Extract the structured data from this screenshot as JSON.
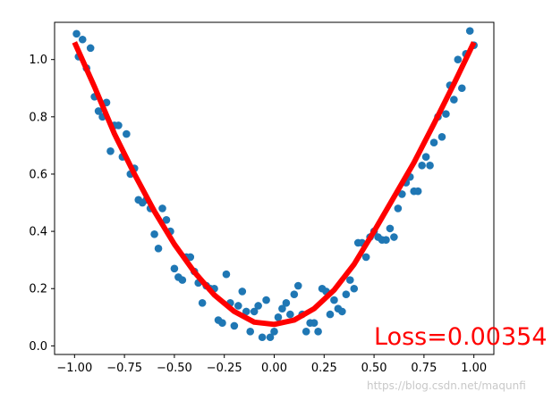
{
  "chart_data": {
    "type": "scatter",
    "xlim": [
      -1.1,
      1.1
    ],
    "ylim": [
      -0.03,
      1.13
    ],
    "grid": false,
    "x_ticks": [
      -1.0,
      -0.75,
      -0.5,
      -0.25,
      0.0,
      0.25,
      0.5,
      0.75,
      1.0
    ],
    "x_tick_labels": [
      "−1.00",
      "−0.75",
      "−0.50",
      "−0.25",
      "0.00",
      "0.25",
      "0.50",
      "0.75",
      "1.00"
    ],
    "y_ticks": [
      0.0,
      0.2,
      0.4,
      0.6,
      0.8,
      1.0
    ],
    "y_tick_labels": [
      "0.0",
      "0.2",
      "0.4",
      "0.6",
      "0.8",
      "1.0"
    ],
    "series": [
      {
        "kind": "scatter",
        "color": "#1f77b4",
        "points": [
          [
            -0.99,
            1.09
          ],
          [
            -0.98,
            1.01
          ],
          [
            -0.96,
            1.07
          ],
          [
            -0.94,
            0.97
          ],
          [
            -0.92,
            1.04
          ],
          [
            -0.9,
            0.87
          ],
          [
            -0.88,
            0.82
          ],
          [
            -0.86,
            0.8
          ],
          [
            -0.84,
            0.85
          ],
          [
            -0.82,
            0.68
          ],
          [
            -0.8,
            0.77
          ],
          [
            -0.78,
            0.77
          ],
          [
            -0.76,
            0.66
          ],
          [
            -0.74,
            0.74
          ],
          [
            -0.72,
            0.6
          ],
          [
            -0.7,
            0.62
          ],
          [
            -0.68,
            0.51
          ],
          [
            -0.66,
            0.5
          ],
          [
            -0.64,
            0.51
          ],
          [
            -0.62,
            0.48
          ],
          [
            -0.6,
            0.39
          ],
          [
            -0.58,
            0.34
          ],
          [
            -0.56,
            0.48
          ],
          [
            -0.54,
            0.44
          ],
          [
            -0.52,
            0.4
          ],
          [
            -0.5,
            0.27
          ],
          [
            -0.48,
            0.24
          ],
          [
            -0.46,
            0.23
          ],
          [
            -0.44,
            0.31
          ],
          [
            -0.42,
            0.31
          ],
          [
            -0.4,
            0.26
          ],
          [
            -0.38,
            0.22
          ],
          [
            -0.36,
            0.15
          ],
          [
            -0.34,
            0.21
          ],
          [
            -0.32,
            0.2
          ],
          [
            -0.3,
            0.2
          ],
          [
            -0.28,
            0.09
          ],
          [
            -0.26,
            0.08
          ],
          [
            -0.24,
            0.25
          ],
          [
            -0.22,
            0.15
          ],
          [
            -0.2,
            0.07
          ],
          [
            -0.18,
            0.14
          ],
          [
            -0.16,
            0.19
          ],
          [
            -0.14,
            0.12
          ],
          [
            -0.12,
            0.05
          ],
          [
            -0.1,
            0.12
          ],
          [
            -0.08,
            0.14
          ],
          [
            -0.06,
            0.03
          ],
          [
            -0.04,
            0.16
          ],
          [
            -0.02,
            0.03
          ],
          [
            0.0,
            0.05
          ],
          [
            0.02,
            0.1
          ],
          [
            0.04,
            0.13
          ],
          [
            0.06,
            0.15
          ],
          [
            0.08,
            0.11
          ],
          [
            0.1,
            0.18
          ],
          [
            0.12,
            0.21
          ],
          [
            0.14,
            0.11
          ],
          [
            0.16,
            0.05
          ],
          [
            0.18,
            0.08
          ],
          [
            0.2,
            0.08
          ],
          [
            0.22,
            0.05
          ],
          [
            0.24,
            0.2
          ],
          [
            0.26,
            0.19
          ],
          [
            0.28,
            0.11
          ],
          [
            0.3,
            0.16
          ],
          [
            0.32,
            0.13
          ],
          [
            0.34,
            0.12
          ],
          [
            0.36,
            0.18
          ],
          [
            0.38,
            0.23
          ],
          [
            0.4,
            0.2
          ],
          [
            0.42,
            0.36
          ],
          [
            0.44,
            0.36
          ],
          [
            0.46,
            0.31
          ],
          [
            0.48,
            0.38
          ],
          [
            0.5,
            0.4
          ],
          [
            0.52,
            0.38
          ],
          [
            0.54,
            0.37
          ],
          [
            0.56,
            0.37
          ],
          [
            0.58,
            0.41
          ],
          [
            0.6,
            0.38
          ],
          [
            0.62,
            0.48
          ],
          [
            0.64,
            0.53
          ],
          [
            0.66,
            0.57
          ],
          [
            0.68,
            0.59
          ],
          [
            0.7,
            0.54
          ],
          [
            0.72,
            0.54
          ],
          [
            0.74,
            0.63
          ],
          [
            0.76,
            0.66
          ],
          [
            0.78,
            0.63
          ],
          [
            0.8,
            0.71
          ],
          [
            0.82,
            0.8
          ],
          [
            0.84,
            0.73
          ],
          [
            0.86,
            0.81
          ],
          [
            0.88,
            0.91
          ],
          [
            0.9,
            0.86
          ],
          [
            0.92,
            1.0
          ],
          [
            0.94,
            0.9
          ],
          [
            0.96,
            1.02
          ],
          [
            0.98,
            1.1
          ],
          [
            1.0,
            1.05
          ]
        ]
      },
      {
        "kind": "line",
        "color": "#ff0000",
        "x": [
          -1.0,
          -0.9,
          -0.8,
          -0.7,
          -0.6,
          -0.5,
          -0.4,
          -0.3,
          -0.2,
          -0.1,
          0.0,
          0.1,
          0.2,
          0.3,
          0.4,
          0.5,
          0.6,
          0.7,
          0.8,
          0.9,
          1.0
        ],
        "y": [
          1.06,
          0.905,
          0.74,
          0.6,
          0.47,
          0.355,
          0.258,
          0.178,
          0.12,
          0.083,
          0.075,
          0.09,
          0.13,
          0.195,
          0.285,
          0.4,
          0.52,
          0.64,
          0.775,
          0.915,
          1.06
        ]
      }
    ],
    "annotations": [
      {
        "text": "Loss=0.00354",
        "x": 0.5,
        "y": 0.0,
        "color": "#ff0000"
      }
    ]
  },
  "watermark": "https://blog.csdn.net/maqunfi"
}
